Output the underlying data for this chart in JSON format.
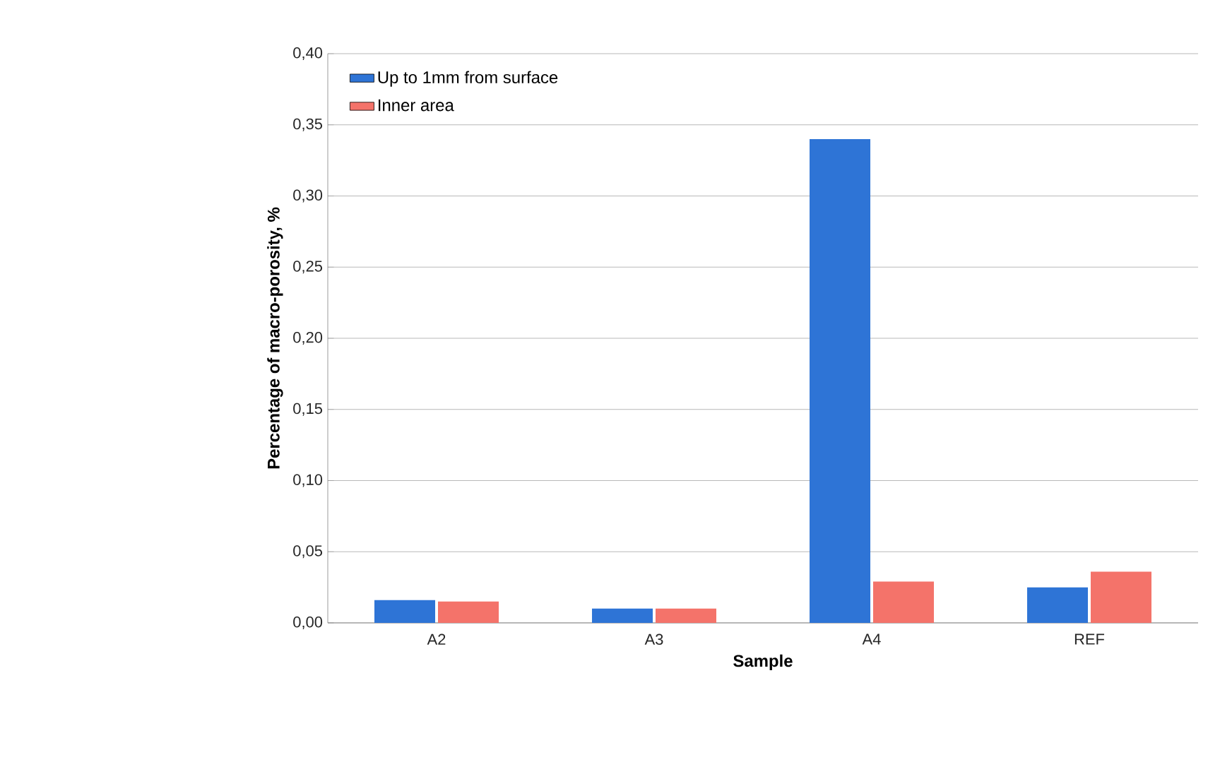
{
  "chart_data": {
    "type": "bar",
    "xlabel": "Sample",
    "ylabel": "Percentage of macro-porosity, %",
    "categories": [
      "A2",
      "A3",
      "A4",
      "REF"
    ],
    "series": [
      {
        "name": "Up to 1mm from surface",
        "color": "#2e74d6",
        "values": [
          0.016,
          0.01,
          0.34,
          0.025
        ]
      },
      {
        "name": "Inner area",
        "color": "#f4736a",
        "values": [
          0.015,
          0.01,
          0.029,
          0.036
        ]
      }
    ],
    "ylim": [
      0,
      0.4
    ],
    "yticks": [
      {
        "value": 0,
        "label": "0,00"
      },
      {
        "value": 0.05,
        "label": "0,05"
      },
      {
        "value": 0.1,
        "label": "0,10"
      },
      {
        "value": 0.15,
        "label": "0,15"
      },
      {
        "value": 0.2,
        "label": "0,20"
      },
      {
        "value": 0.25,
        "label": "0,25"
      },
      {
        "value": 0.3,
        "label": "0,30"
      },
      {
        "value": 0.35,
        "label": "0,35"
      },
      {
        "value": 0.4,
        "label": "0,40"
      }
    ],
    "grid": "y",
    "legend": "top left"
  }
}
